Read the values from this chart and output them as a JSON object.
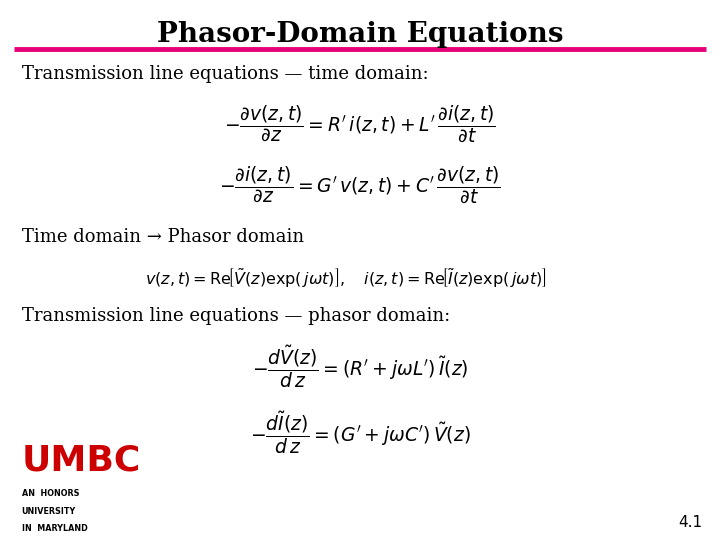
{
  "title": "Phasor-Domain Equations",
  "title_color": "#000000",
  "title_fontsize": 20,
  "line_color": "#E8007A",
  "bg_color": "#FFFFFF",
  "text_color": "#000000",
  "umbc_color": "#CC0000",
  "slide_number": "4.1",
  "eq1_label": "Transmission line equations — time domain:",
  "eq2_label": "Time domain → Phasor domain",
  "eq3_label": "Transmission line equations — phasor domain:",
  "eq_td1": "$-\\dfrac{\\partial v(z,t)}{\\partial z} = R'\\,i(z,t) + L'\\,\\dfrac{\\partial i(z,t)}{\\partial t}$",
  "eq_td2": "$-\\dfrac{\\partial i(z,t)}{\\partial z} = G'\\,v(z,t) + C'\\,\\dfrac{\\partial v(z,t)}{\\partial t}$",
  "eq_conv": "$v(z,t) = \\mathrm{Re}\\!\\left[\\tilde{V}(z)\\exp(\\,j\\omega t)\\right],\\quad i(z,t) = \\mathrm{Re}\\!\\left[\\tilde{I}(z)\\exp(\\,j\\omega t)\\right]$",
  "eq_pd1": "$-\\dfrac{d\\tilde{V}(z)}{d\\,z} = (R' + j\\omega L')\\,\\tilde{I}(z)$",
  "eq_pd2": "$-\\dfrac{d\\tilde{I}(z)}{d\\,z} = (G' + j\\omega C')\\,\\tilde{V}(z)$",
  "umbc_text": [
    "UMBC",
    "AN  HONORS",
    "UNIVERSITY",
    "IN  MARYLAND"
  ]
}
